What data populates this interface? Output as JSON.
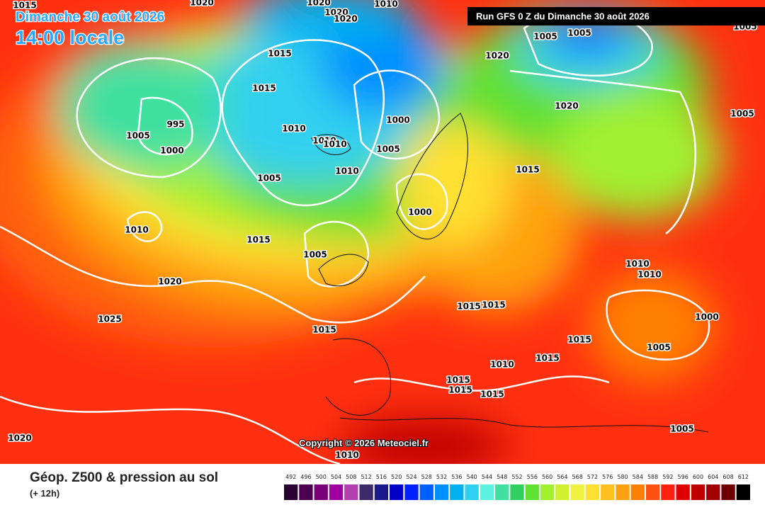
{
  "header": {
    "date": "Dimanche 30 août 2026",
    "time": "14:00 locale",
    "run": "Run GFS 0 Z du Dimanche 30 août 2026"
  },
  "copyright": "Copyright © 2026 Meteociel.fr",
  "isobar_labels": [
    "1015",
    "1020",
    "1020",
    "1010",
    "1020",
    "1020",
    "1005",
    "1005",
    "1005",
    "1015",
    "1020",
    "1015",
    "995",
    "1005",
    "1000",
    "1010",
    "1010",
    "1010",
    "1000",
    "1005",
    "1020",
    "1005",
    "1005",
    "1010",
    "1015",
    "1000",
    "1010",
    "1015",
    "1005",
    "1020",
    "1010",
    "1010",
    "1015",
    "1015",
    "1025",
    "1015",
    "1000",
    "1015",
    "1005",
    "1010",
    "1015",
    "1015",
    "1015",
    "1015",
    "1005",
    "1020",
    "1010"
  ],
  "legend": {
    "title": "Géop. Z500 & pression au sol",
    "lead": "(+ 12h)",
    "levels": [
      {
        "value": 492,
        "color": "#2b0033"
      },
      {
        "value": 496,
        "color": "#4b0050"
      },
      {
        "value": 500,
        "color": "#7a007a"
      },
      {
        "value": 504,
        "color": "#a000a0"
      },
      {
        "value": 508,
        "color": "#b040b0"
      },
      {
        "value": 512,
        "color": "#3c2a6a"
      },
      {
        "value": 516,
        "color": "#1a1a8a"
      },
      {
        "value": 520,
        "color": "#0000c8"
      },
      {
        "value": 524,
        "color": "#0020ff"
      },
      {
        "value": 528,
        "color": "#0060ff"
      },
      {
        "value": 532,
        "color": "#0090ff"
      },
      {
        "value": 536,
        "color": "#00b0f0"
      },
      {
        "value": 540,
        "color": "#30d0f0"
      },
      {
        "value": 544,
        "color": "#60f0e0"
      },
      {
        "value": 548,
        "color": "#40e0a0"
      },
      {
        "value": 552,
        "color": "#30d060"
      },
      {
        "value": 556,
        "color": "#60e030"
      },
      {
        "value": 560,
        "color": "#a0f030"
      },
      {
        "value": 564,
        "color": "#d0f030"
      },
      {
        "value": 568,
        "color": "#f0f040"
      },
      {
        "value": 572,
        "color": "#ffe030"
      },
      {
        "value": 576,
        "color": "#ffc020"
      },
      {
        "value": 580,
        "color": "#ffa010"
      },
      {
        "value": 584,
        "color": "#ff8000"
      },
      {
        "value": 588,
        "color": "#ff5010"
      },
      {
        "value": 592,
        "color": "#ff2010"
      },
      {
        "value": 596,
        "color": "#e00000"
      },
      {
        "value": 600,
        "color": "#c00000"
      },
      {
        "value": 604,
        "color": "#a00000"
      },
      {
        "value": 608,
        "color": "#700000"
      },
      {
        "value": 612,
        "color": "#000000"
      }
    ]
  }
}
